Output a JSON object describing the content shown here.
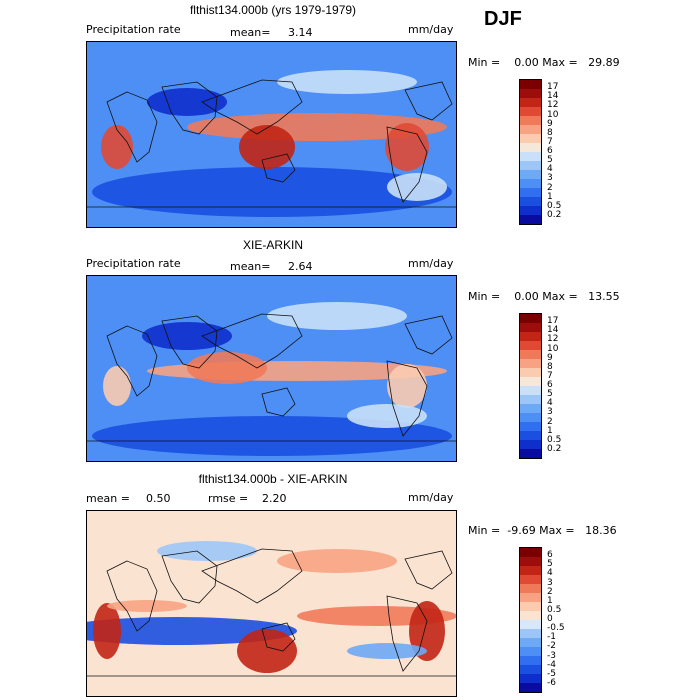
{
  "season": "DJF",
  "panels": [
    {
      "title": "flthist134.000b (yrs 1979-1979)",
      "left_label": "Precipitation rate",
      "mid_label": "mean=",
      "mid_value": "3.14",
      "units": "mm/day",
      "minmax": "Min =    0.00 Max =   29.89",
      "levels": [
        "0.2",
        "0.5",
        "1",
        "2",
        "3",
        "4",
        "5",
        "6",
        "7",
        "8",
        "9",
        "10",
        "12",
        "14",
        "17"
      ],
      "colors": [
        "#0a0ca0",
        "#0e2fcc",
        "#1a4fe0",
        "#2f6ff0",
        "#4d8ff5",
        "#6ea9f5",
        "#9cc6f7",
        "#c9e0f8",
        "#f5e8d8",
        "#fbcbb0",
        "#f7a383",
        "#ef7a5a",
        "#e04a35",
        "#c22515",
        "#9c0d0b",
        "#7a0000"
      ],
      "style": "model"
    },
    {
      "title": "XIE-ARKIN",
      "left_label": "Precipitation rate",
      "mid_label": "mean=",
      "mid_value": "2.64",
      "units": "mm/day",
      "minmax": "Min =    0.00 Max =   13.55",
      "levels": [
        "0.2",
        "0.5",
        "1",
        "2",
        "3",
        "4",
        "5",
        "6",
        "7",
        "8",
        "9",
        "10",
        "12",
        "14",
        "17"
      ],
      "colors": [
        "#0a0ca0",
        "#0e2fcc",
        "#1a4fe0",
        "#2f6ff0",
        "#4d8ff5",
        "#6ea9f5",
        "#9cc6f7",
        "#c9e0f8",
        "#f5e8d8",
        "#fbcbb0",
        "#f7a383",
        "#ef7a5a",
        "#e04a35",
        "#c22515",
        "#9c0d0b",
        "#7a0000"
      ],
      "style": "obs"
    },
    {
      "title": "flthist134.000b - XIE-ARKIN",
      "left_label": "mean =",
      "left_value": "0.50",
      "mid_label": "rmse =",
      "mid_value": "2.20",
      "units": "mm/day",
      "minmax": "Min =  -9.69 Max =   18.36",
      "levels": [
        "-6",
        "-5",
        "-4",
        "-3",
        "-2",
        "-1",
        "-0.5",
        "0",
        "0.5",
        "1",
        "2",
        "3",
        "4",
        "5",
        "6"
      ],
      "colors": [
        "#0a0ca0",
        "#0e2fcc",
        "#1a4fe0",
        "#2f6ff0",
        "#4d8ff5",
        "#6ea9f5",
        "#9cc6f7",
        "#d6e8fa",
        "#fbe3d2",
        "#fbcbb0",
        "#f7a383",
        "#ef7a5a",
        "#e04a35",
        "#c22515",
        "#9c0d0b",
        "#7a0000"
      ],
      "style": "diff"
    }
  ]
}
